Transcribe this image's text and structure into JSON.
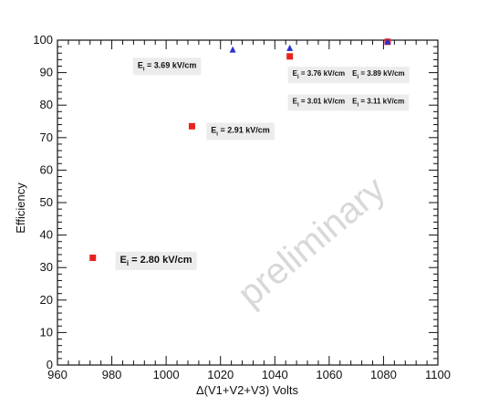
{
  "chart_data": {
    "type": "scatter",
    "xlabel": "Δ(V1+V2+V3)  Volts",
    "ylabel": "Efficiency",
    "xlim": [
      960,
      1100
    ],
    "ylim": [
      0,
      100
    ],
    "x_ticks": [
      960,
      980,
      1000,
      1020,
      1040,
      1060,
      1080,
      1100
    ],
    "y_ticks": [
      0,
      10,
      20,
      30,
      40,
      50,
      60,
      70,
      80,
      90,
      100
    ],
    "grid": false,
    "watermark": "preliminary",
    "series": [
      {
        "marker": "square",
        "color": "#e8231f",
        "points": [
          {
            "x": 973,
            "y": 33
          },
          {
            "x": 1009.5,
            "y": 73.5
          },
          {
            "x": 1045.5,
            "y": 95
          },
          {
            "x": 1081.5,
            "y": 99.5
          }
        ]
      },
      {
        "marker": "triangle",
        "color": "#2b2fd0",
        "points": [
          {
            "x": 1024.5,
            "y": 97
          },
          {
            "x": 1045.5,
            "y": 97.5
          },
          {
            "x": 1081.5,
            "y": 99.5
          }
        ]
      }
    ],
    "annotations": [
      {
        "label": "E",
        "sub": "i",
        "value": " = 2.80 kV/cm",
        "x": 983,
        "y": 31.5,
        "size": 11
      },
      {
        "label": "E",
        "sub": "i",
        "value": " = 2.91 kV/cm",
        "x": 1016.5,
        "y": 71.5,
        "size": 9
      },
      {
        "label": "E",
        "sub": "i",
        "value": " = 3.69 kV/cm",
        "x": 989.5,
        "y": 91.5,
        "size": 9
      },
      {
        "label": "E",
        "sub": "i",
        "value": " = 3.76 kV/cm",
        "x": 1046.5,
        "y": 89,
        "size": 8
      },
      {
        "label": "E",
        "sub": "i",
        "value": " = 3.89 kV/cm",
        "x": 1068.5,
        "y": 89,
        "size": 8
      },
      {
        "label": "E",
        "sub": "i",
        "value": " = 3.01 kV/cm",
        "x": 1046.5,
        "y": 80.5,
        "size": 8
      },
      {
        "label": "E",
        "sub": "i",
        "value": " = 3.11 kV/cm",
        "x": 1068.5,
        "y": 80.5,
        "size": 8
      }
    ]
  }
}
